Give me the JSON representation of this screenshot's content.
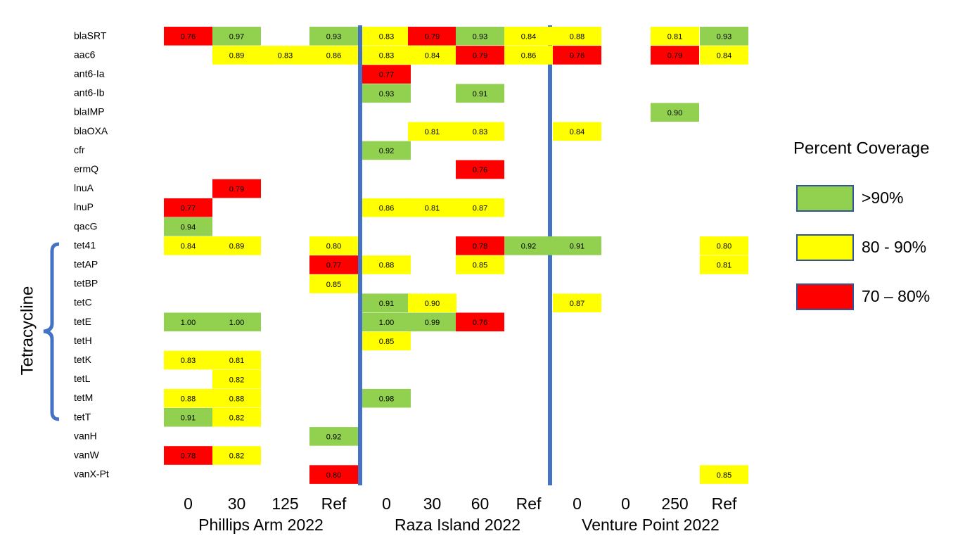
{
  "chart_data": {
    "type": "heatmap",
    "rows": [
      "blaSRT",
      "aac6",
      "ant6-Ia",
      "ant6-Ib",
      "blaIMP",
      "blaOXA",
      "cfr",
      "ermQ",
      "lnuA",
      "lnuP",
      "qacG",
      "tet41",
      "tetAP",
      "tetBP",
      "tetC",
      "tetE",
      "tetH",
      "tetK",
      "tetL",
      "tetM",
      "tetT",
      "vanH",
      "vanW",
      "vanX-Pt"
    ],
    "columns": [
      "0",
      "30",
      "125",
      "Ref",
      "0",
      "30",
      "60",
      "Ref",
      "0",
      "0",
      "250",
      "Ref"
    ],
    "groups": [
      "Phillips Arm 2022",
      "Raza Island 2022",
      "Venture Point 2022"
    ],
    "bracket_label": "Tetracycline",
    "values": [
      [
        0.76,
        0.97,
        null,
        0.93,
        0.83,
        0.79,
        0.93,
        0.84,
        0.88,
        null,
        0.81,
        0.93
      ],
      [
        null,
        0.89,
        0.83,
        0.86,
        0.83,
        0.84,
        0.79,
        0.86,
        0.76,
        null,
        0.79,
        0.84
      ],
      [
        null,
        null,
        null,
        null,
        0.77,
        null,
        null,
        null,
        null,
        null,
        null,
        null
      ],
      [
        null,
        null,
        null,
        null,
        0.93,
        null,
        0.91,
        null,
        null,
        null,
        null,
        null
      ],
      [
        null,
        null,
        null,
        null,
        null,
        null,
        null,
        null,
        null,
        null,
        0.9,
        null
      ],
      [
        null,
        null,
        null,
        null,
        null,
        0.81,
        0.83,
        null,
        0.84,
        null,
        null,
        null
      ],
      [
        null,
        null,
        null,
        null,
        0.92,
        null,
        null,
        null,
        null,
        null,
        null,
        null
      ],
      [
        null,
        null,
        null,
        null,
        null,
        null,
        0.76,
        null,
        null,
        null,
        null,
        null
      ],
      [
        null,
        0.79,
        null,
        null,
        null,
        null,
        null,
        null,
        null,
        null,
        null,
        null
      ],
      [
        0.77,
        null,
        null,
        null,
        0.86,
        0.81,
        0.87,
        null,
        null,
        null,
        null,
        null
      ],
      [
        0.94,
        null,
        null,
        null,
        null,
        null,
        null,
        null,
        null,
        null,
        null,
        null
      ],
      [
        0.84,
        0.89,
        null,
        0.8,
        null,
        null,
        0.78,
        0.92,
        0.91,
        null,
        null,
        0.8
      ],
      [
        null,
        null,
        null,
        0.77,
        0.88,
        null,
        0.85,
        null,
        null,
        null,
        null,
        0.81
      ],
      [
        null,
        null,
        null,
        0.85,
        null,
        null,
        null,
        null,
        null,
        null,
        null,
        null
      ],
      [
        null,
        null,
        null,
        null,
        0.91,
        0.9,
        null,
        null,
        0.87,
        null,
        null,
        null
      ],
      [
        1,
        1,
        null,
        null,
        1,
        0.99,
        0.76,
        null,
        null,
        null,
        null,
        null
      ],
      [
        null,
        null,
        null,
        null,
        0.85,
        null,
        null,
        null,
        null,
        null,
        null,
        null
      ],
      [
        0.83,
        0.81,
        null,
        null,
        null,
        null,
        null,
        null,
        null,
        null,
        null,
        null
      ],
      [
        null,
        0.82,
        null,
        null,
        null,
        null,
        null,
        null,
        null,
        null,
        null,
        null
      ],
      [
        0.88,
        0.88,
        null,
        null,
        0.98,
        null,
        null,
        null,
        null,
        null,
        null,
        null
      ],
      [
        0.91,
        0.82,
        null,
        null,
        null,
        null,
        null,
        null,
        null,
        null,
        null,
        null
      ],
      [
        null,
        null,
        null,
        0.92,
        null,
        null,
        null,
        null,
        null,
        null,
        null,
        null
      ],
      [
        0.78,
        0.82,
        null,
        null,
        null,
        null,
        null,
        null,
        null,
        null,
        null,
        null
      ],
      [
        null,
        null,
        null,
        0.8,
        null,
        null,
        null,
        null,
        null,
        null,
        null,
        0.85
      ]
    ],
    "value_labels": [
      [
        "0.76",
        "0.97",
        null,
        "0.93",
        "0.83",
        "0.79",
        "0.93",
        "0.84",
        "0.88",
        null,
        "0.81",
        "0.93"
      ],
      [
        null,
        "0.89",
        "0.83",
        "0.86",
        "0.83",
        "0.84",
        "0.79",
        "0.86",
        "0.76",
        null,
        "0.79",
        "0.84"
      ],
      [
        null,
        null,
        null,
        null,
        "0.77",
        null,
        null,
        null,
        null,
        null,
        null,
        null
      ],
      [
        null,
        null,
        null,
        null,
        "0.93",
        null,
        "0.91",
        null,
        null,
        null,
        null,
        null
      ],
      [
        null,
        null,
        null,
        null,
        null,
        null,
        null,
        null,
        null,
        null,
        "0.90",
        null
      ],
      [
        null,
        null,
        null,
        null,
        null,
        "0.81",
        "0.83",
        null,
        "0.84",
        null,
        null,
        null
      ],
      [
        null,
        null,
        null,
        null,
        "0.92",
        null,
        null,
        null,
        null,
        null,
        null,
        null
      ],
      [
        null,
        null,
        null,
        null,
        null,
        null,
        "0.76",
        null,
        null,
        null,
        null,
        null
      ],
      [
        null,
        "0.79",
        null,
        null,
        null,
        null,
        null,
        null,
        null,
        null,
        null,
        null
      ],
      [
        "0.77",
        null,
        null,
        null,
        "0.86",
        "0.81",
        "0.87",
        null,
        null,
        null,
        null,
        null
      ],
      [
        "0.94",
        null,
        null,
        null,
        null,
        null,
        null,
        null,
        null,
        null,
        null,
        null
      ],
      [
        "0.84",
        "0.89",
        null,
        "0.80",
        null,
        null,
        "0.78",
        "0.92",
        "0.91",
        null,
        null,
        "0.80"
      ],
      [
        null,
        null,
        null,
        "0.77",
        "0.88",
        null,
        "0.85",
        null,
        null,
        null,
        null,
        "0.81"
      ],
      [
        null,
        null,
        null,
        "0.85",
        null,
        null,
        null,
        null,
        null,
        null,
        null,
        null
      ],
      [
        null,
        null,
        null,
        null,
        "0.91",
        "0.90",
        null,
        null,
        "0.87",
        null,
        null,
        null
      ],
      [
        "1.00",
        "1.00",
        null,
        null,
        "1.00",
        "0.99",
        "0.76",
        null,
        null,
        null,
        null,
        null
      ],
      [
        null,
        null,
        null,
        null,
        "0.85",
        null,
        null,
        null,
        null,
        null,
        null,
        null
      ],
      [
        "0.83",
        "0.81",
        null,
        null,
        null,
        null,
        null,
        null,
        null,
        null,
        null,
        null
      ],
      [
        null,
        "0.82",
        null,
        null,
        null,
        null,
        null,
        null,
        null,
        null,
        null,
        null
      ],
      [
        "0.88",
        "0.88",
        null,
        null,
        "0.98",
        null,
        null,
        null,
        null,
        null,
        null,
        null
      ],
      [
        "0.91",
        "0.82",
        null,
        null,
        null,
        null,
        null,
        null,
        null,
        null,
        null,
        null
      ],
      [
        null,
        null,
        null,
        "0.92",
        null,
        null,
        null,
        null,
        null,
        null,
        null,
        null
      ],
      [
        "0.78",
        "0.82",
        null,
        null,
        null,
        null,
        null,
        null,
        null,
        null,
        null,
        null
      ],
      [
        null,
        null,
        null,
        "0.80",
        null,
        null,
        null,
        null,
        null,
        null,
        null,
        "0.85"
      ]
    ],
    "colors": [
      [
        "#ff0000",
        "#92d050",
        null,
        "#92d050",
        "#ffff00",
        "#ff0000",
        "#92d050",
        "#ffff00",
        "#ffff00",
        null,
        "#ffff00",
        "#92d050"
      ],
      [
        null,
        "#ffff00",
        "#ffff00",
        "#ffff00",
        "#ffff00",
        "#ffff00",
        "#ff0000",
        "#ffff00",
        "#ff0000",
        null,
        "#ff0000",
        "#ffff00"
      ],
      [
        null,
        null,
        null,
        null,
        "#ff0000",
        null,
        null,
        null,
        null,
        null,
        null,
        null
      ],
      [
        null,
        null,
        null,
        null,
        "#92d050",
        null,
        "#92d050",
        null,
        null,
        null,
        null,
        null
      ],
      [
        null,
        null,
        null,
        null,
        null,
        null,
        null,
        null,
        null,
        null,
        "#92d050",
        null
      ],
      [
        null,
        null,
        null,
        null,
        null,
        "#ffff00",
        "#ffff00",
        null,
        "#ffff00",
        null,
        null,
        null
      ],
      [
        null,
        null,
        null,
        null,
        "#92d050",
        null,
        null,
        null,
        null,
        null,
        null,
        null
      ],
      [
        null,
        null,
        null,
        null,
        null,
        null,
        "#ff0000",
        null,
        null,
        null,
        null,
        null
      ],
      [
        null,
        "#ff0000",
        null,
        null,
        null,
        null,
        null,
        null,
        null,
        null,
        null,
        null
      ],
      [
        "#ff0000",
        null,
        null,
        null,
        "#ffff00",
        "#ffff00",
        "#ffff00",
        null,
        null,
        null,
        null,
        null
      ],
      [
        "#92d050",
        null,
        null,
        null,
        null,
        null,
        null,
        null,
        null,
        null,
        null,
        null
      ],
      [
        "#ffff00",
        "#ffff00",
        null,
        "#ffff00",
        null,
        null,
        "#ff0000",
        "#92d050",
        "#92d050",
        null,
        null,
        "#ffff00"
      ],
      [
        null,
        null,
        null,
        "#ff0000",
        "#ffff00",
        null,
        "#ffff00",
        null,
        null,
        null,
        null,
        "#ffff00"
      ],
      [
        null,
        null,
        null,
        "#ffff00",
        null,
        null,
        null,
        null,
        null,
        null,
        null,
        null
      ],
      [
        null,
        null,
        null,
        null,
        "#92d050",
        "#ffff00",
        null,
        null,
        "#ffff00",
        null,
        null,
        null
      ],
      [
        "#92d050",
        "#92d050",
        null,
        null,
        "#92d050",
        "#92d050",
        "#ff0000",
        null,
        null,
        null,
        null,
        null
      ],
      [
        null,
        null,
        null,
        null,
        "#ffff00",
        null,
        null,
        null,
        null,
        null,
        null,
        null
      ],
      [
        "#ffff00",
        "#ffff00",
        null,
        null,
        null,
        null,
        null,
        null,
        null,
        null,
        null,
        null
      ],
      [
        null,
        "#ffff00",
        null,
        null,
        null,
        null,
        null,
        null,
        null,
        null,
        null,
        null
      ],
      [
        "#ffff00",
        "#ffff00",
        null,
        null,
        "#92d050",
        null,
        null,
        null,
        null,
        null,
        null,
        null
      ],
      [
        "#92d050",
        "#ffff00",
        null,
        null,
        null,
        null,
        null,
        null,
        null,
        null,
        null,
        null
      ],
      [
        null,
        null,
        null,
        "#92d050",
        null,
        null,
        null,
        null,
        null,
        null,
        null,
        null
      ],
      [
        "#ff0000",
        "#ffff00",
        null,
        null,
        null,
        null,
        null,
        null,
        null,
        null,
        null,
        null
      ],
      [
        null,
        null,
        null,
        "#ff0000",
        null,
        null,
        null,
        null,
        null,
        null,
        null,
        "#ffff00"
      ]
    ],
    "legend": {
      "title": "Percent Coverage",
      "items": [
        {
          "label": ">90%",
          "color": "#92d050"
        },
        {
          "label": "80 - 90%",
          "color": "#ffff00"
        },
        {
          "label": "70 – 80%",
          "color": "#ff0000"
        }
      ]
    }
  }
}
